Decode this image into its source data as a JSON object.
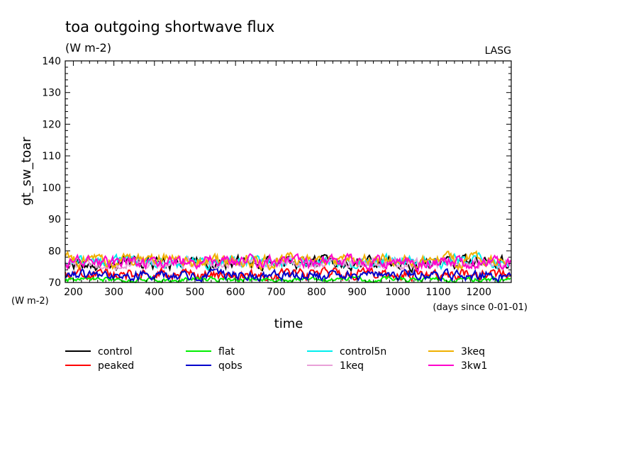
{
  "chart_data": {
    "type": "line",
    "title": "toa outgoing shortwave flux",
    "units": "(W m-2)",
    "credit": "LASG",
    "xlabel": "time",
    "xunits": "(days since 0-01-01)",
    "ylabel": "gt_sw_toar",
    "yunits": "(W m-2)",
    "xlim": [
      180,
      1280
    ],
    "ylim": [
      70,
      140
    ],
    "xticks": [
      200,
      300,
      400,
      500,
      600,
      700,
      800,
      900,
      1000,
      1100,
      1200
    ],
    "yticks": [
      70,
      80,
      90,
      100,
      110,
      120,
      130,
      140
    ],
    "grid": false,
    "legend_position": "bottom",
    "series": [
      {
        "name": "control",
        "color": "#000000",
        "mean": 76.2,
        "amp": 1.5,
        "seed": 11
      },
      {
        "name": "peaked",
        "color": "#ff0000",
        "mean": 72.6,
        "amp": 1.3,
        "seed": 23
      },
      {
        "name": "flat",
        "color": "#00ee00",
        "mean": 70.9,
        "amp": 0.6,
        "seed": 37
      },
      {
        "name": "qobs",
        "color": "#0000cc",
        "mean": 72.4,
        "amp": 1.2,
        "seed": 41
      },
      {
        "name": "control5n",
        "color": "#00eeee",
        "mean": 76.6,
        "amp": 1.4,
        "seed": 53
      },
      {
        "name": "1keq",
        "color": "#e8a0d8",
        "mean": 76.0,
        "amp": 1.3,
        "seed": 67
      },
      {
        "name": "3keq",
        "color": "#f0b000",
        "mean": 76.8,
        "amp": 1.6,
        "seed": 79
      },
      {
        "name": "3kw1",
        "color": "#ff00cc",
        "mean": 76.4,
        "amp": 1.5,
        "seed": 97
      }
    ]
  }
}
